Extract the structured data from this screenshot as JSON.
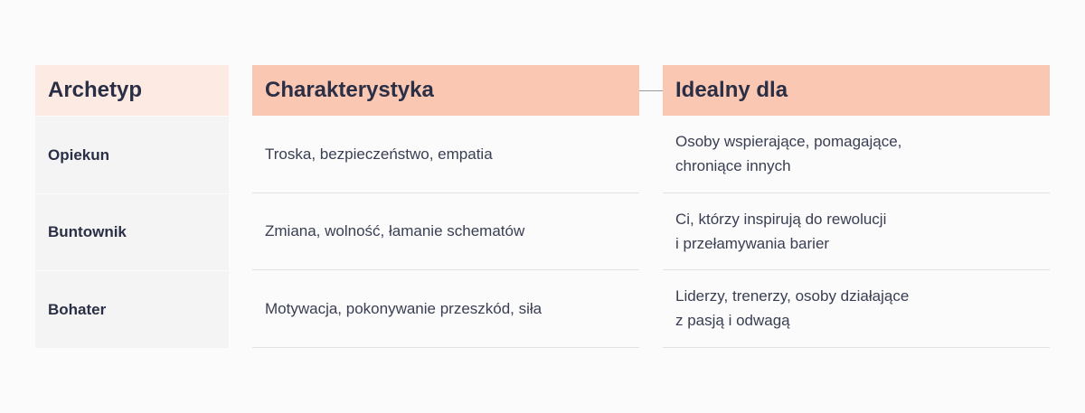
{
  "headers": {
    "archetype": "Archetyp",
    "characteristics": "Charakterystyka",
    "ideal_for": "Idealny dla"
  },
  "rows": [
    {
      "archetype": "Opiekun",
      "characteristics": "Troska, bezpieczeństwo, empatia",
      "ideal_for_line1": "Osoby wspierające, pomagające,",
      "ideal_for_line2": "chroniące innych"
    },
    {
      "archetype": "Buntownik",
      "characteristics": "Zmiana, wolność, łamanie schematów",
      "ideal_for_line1": "Ci, którzy inspirują do rewolucji",
      "ideal_for_line2": "i przełamywania barier"
    },
    {
      "archetype": "Bohater",
      "characteristics": "Motywacja, pokonywanie przeszkód, siła",
      "ideal_for_line1": "Liderzy, trenerzy, osoby działające",
      "ideal_for_line2": "z pasją i odwagą"
    }
  ],
  "colors": {
    "header_light": "#fdebe3",
    "header_accent": "#f9c7b2",
    "text": "#2b2f45"
  }
}
